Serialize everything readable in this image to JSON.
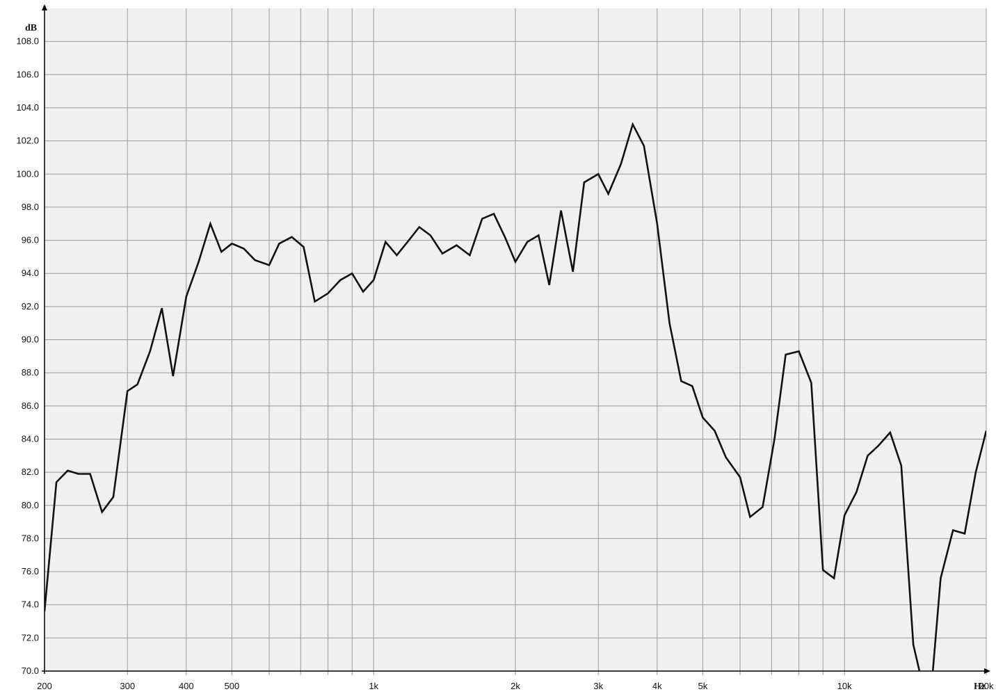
{
  "chart_data": {
    "type": "line",
    "title": "",
    "xlabel": "Hz",
    "ylabel": "dB",
    "x_scale": "log",
    "xlim": [
      200,
      20000
    ],
    "ylim": [
      70,
      110
    ],
    "grid": true,
    "colors": {
      "background": "#f0f0f0",
      "grid": "#9a9a9a",
      "line": "#111111",
      "axis": "#000000"
    },
    "y_ticks": [
      {
        "value": 70,
        "label": "70.0"
      },
      {
        "value": 72,
        "label": "72.0"
      },
      {
        "value": 74,
        "label": "74.0"
      },
      {
        "value": 76,
        "label": "76.0"
      },
      {
        "value": 78,
        "label": "78.0"
      },
      {
        "value": 80,
        "label": "80.0"
      },
      {
        "value": 82,
        "label": "82.0"
      },
      {
        "value": 84,
        "label": "84.0"
      },
      {
        "value": 86,
        "label": "86.0"
      },
      {
        "value": 88,
        "label": "88.0"
      },
      {
        "value": 90,
        "label": "90.0"
      },
      {
        "value": 92,
        "label": "92.0"
      },
      {
        "value": 94,
        "label": "94.0"
      },
      {
        "value": 96,
        "label": "96.0"
      },
      {
        "value": 98,
        "label": "98.0"
      },
      {
        "value": 100,
        "label": "100.0"
      },
      {
        "value": 102,
        "label": "102.0"
      },
      {
        "value": 104,
        "label": "104.0"
      },
      {
        "value": 106,
        "label": "106.0"
      },
      {
        "value": 108,
        "label": "108.0"
      }
    ],
    "x_ticks": [
      {
        "value": 200,
        "label": "200"
      },
      {
        "value": 300,
        "label": "300"
      },
      {
        "value": 400,
        "label": "400"
      },
      {
        "value": 500,
        "label": "500"
      },
      {
        "value": 1000,
        "label": "1k"
      },
      {
        "value": 2000,
        "label": "2k"
      },
      {
        "value": 3000,
        "label": "3k"
      },
      {
        "value": 4000,
        "label": "4k"
      },
      {
        "value": 5000,
        "label": "5k"
      },
      {
        "value": 10000,
        "label": "10k"
      },
      {
        "value": 20000,
        "label": "20k"
      }
    ],
    "x_gridlines": [
      200,
      300,
      400,
      500,
      600,
      700,
      800,
      900,
      1000,
      2000,
      3000,
      4000,
      5000,
      6000,
      7000,
      8000,
      9000,
      10000,
      20000
    ],
    "series": [
      {
        "x": [
          200,
          212,
          224,
          236,
          250,
          265,
          280,
          300,
          315,
          335,
          355,
          375,
          400,
          425,
          450,
          475,
          500,
          530,
          560,
          600,
          630,
          670,
          710,
          750,
          800,
          850,
          900,
          950,
          1000,
          1060,
          1120,
          1180,
          1250,
          1320,
          1400,
          1500,
          1600,
          1700,
          1800,
          1900,
          2000,
          2120,
          2240,
          2360,
          2500,
          2650,
          2800,
          3000,
          3150,
          3350,
          3550,
          3750,
          4000,
          4250,
          4500,
          4750,
          5000,
          5300,
          5600,
          6000,
          6300,
          6700,
          7100,
          7500,
          8000,
          8500,
          9000,
          9500,
          10000,
          10600,
          11200,
          11800,
          12500,
          13200,
          14000,
          14700,
          15300,
          16000,
          17000,
          18000,
          19000,
          20000
        ],
        "values": [
          73.6,
          81.4,
          82.1,
          81.9,
          81.9,
          79.6,
          80.5,
          86.9,
          87.3,
          89.3,
          91.9,
          87.8,
          92.6,
          94.7,
          97.0,
          95.3,
          95.8,
          95.5,
          94.8,
          94.5,
          95.8,
          96.2,
          95.6,
          92.3,
          92.8,
          93.6,
          94.0,
          92.9,
          93.6,
          95.9,
          95.1,
          95.9,
          96.8,
          96.3,
          95.2,
          95.7,
          95.1,
          97.3,
          97.6,
          96.2,
          94.7,
          95.9,
          96.3,
          93.3,
          97.8,
          94.1,
          99.5,
          100.0,
          98.8,
          100.6,
          103.0,
          101.7,
          97.0,
          91.0,
          87.5,
          87.2,
          85.3,
          84.5,
          82.9,
          81.7,
          79.3,
          79.9,
          84.0,
          89.1,
          89.3,
          87.4,
          76.1,
          75.6,
          79.4,
          80.8,
          83.0,
          83.6,
          84.4,
          82.4,
          71.6,
          69.0,
          69.0,
          75.6,
          78.5,
          78.3,
          82.0,
          84.5
        ]
      }
    ]
  }
}
